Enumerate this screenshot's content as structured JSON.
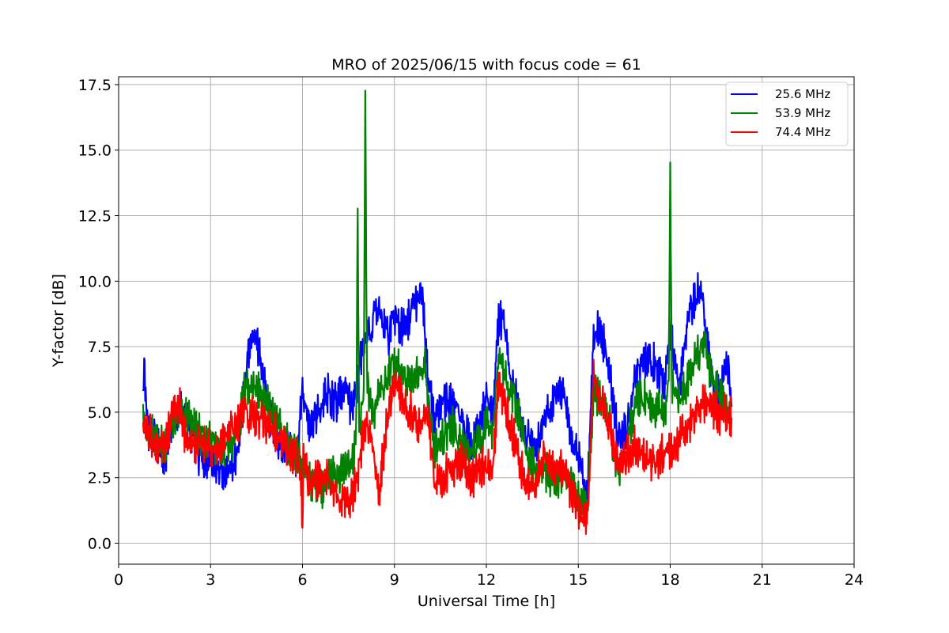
{
  "chart_data": {
    "type": "line",
    "title": "MRO of 2025/06/15 with focus code = 61",
    "xlabel": "Universal Time [h]",
    "ylabel": "Y-factor [dB]",
    "xlim": [
      0,
      24
    ],
    "ylim": [
      -0.8,
      17.8
    ],
    "x_ticks": [
      "0",
      "3",
      "6",
      "9",
      "12",
      "15",
      "18",
      "21",
      "24"
    ],
    "y_ticks": [
      "0.0",
      "2.5",
      "5.0",
      "7.5",
      "10.0",
      "12.5",
      "15.0",
      "17.5"
    ],
    "grid": true,
    "legend_position": "top-right",
    "series": [
      {
        "name": "25.6 MHz",
        "color": "#0000ff",
        "x": [
          0.8,
          0.85,
          0.9,
          1.0,
          1.2,
          1.5,
          1.8,
          2.0,
          2.3,
          2.6,
          3.0,
          3.3,
          3.6,
          3.9,
          4.1,
          4.3,
          4.5,
          4.7,
          5.0,
          5.2,
          5.5,
          5.8,
          6.0,
          6.2,
          6.5,
          6.8,
          7.1,
          7.4,
          7.6,
          7.8,
          8.0,
          8.2,
          8.4,
          8.6,
          8.8,
          9.0,
          9.3,
          9.6,
          9.9,
          10.1,
          10.3,
          10.6,
          10.9,
          11.2,
          11.5,
          11.8,
          12.0,
          12.2,
          12.4,
          12.6,
          12.8,
          13.0,
          13.3,
          13.6,
          13.9,
          14.2,
          14.5,
          14.8,
          15.1,
          15.3,
          15.5,
          15.7,
          16.0,
          16.3,
          16.6,
          16.9,
          17.2,
          17.5,
          17.8,
          18.0,
          18.3,
          18.6,
          18.9,
          19.1,
          19.3,
          19.6,
          19.9,
          20.0
        ],
        "y": [
          5.6,
          6.8,
          5.0,
          4.2,
          3.9,
          3.3,
          4.6,
          5.2,
          4.5,
          3.4,
          3.1,
          2.9,
          2.6,
          3.4,
          5.8,
          7.7,
          7.8,
          6.3,
          4.5,
          3.6,
          4.0,
          3.3,
          6.0,
          4.3,
          5.0,
          5.8,
          5.3,
          6.1,
          5.0,
          6.2,
          7.6,
          8.0,
          9.0,
          8.5,
          7.8,
          8.7,
          8.2,
          8.9,
          9.8,
          6.0,
          4.9,
          5.4,
          5.3,
          4.8,
          3.6,
          4.4,
          5.6,
          4.8,
          8.6,
          8.2,
          6.4,
          5.3,
          4.0,
          3.6,
          4.6,
          5.4,
          5.8,
          3.8,
          2.9,
          1.8,
          7.7,
          8.3,
          6.7,
          4.0,
          4.3,
          6.6,
          7.1,
          6.9,
          6.0,
          8.2,
          5.9,
          8.8,
          9.6,
          9.0,
          6.5,
          5.6,
          6.8,
          5.2
        ]
      },
      {
        "name": "53.9 MHz",
        "color": "#008000",
        "x": [
          0.8,
          1.0,
          1.2,
          1.5,
          1.8,
          2.0,
          2.3,
          2.6,
          3.0,
          3.3,
          3.6,
          3.9,
          4.1,
          4.3,
          4.5,
          4.7,
          5.0,
          5.3,
          5.6,
          5.9,
          6.1,
          6.4,
          6.7,
          7.0,
          7.3,
          7.6,
          7.75,
          7.8,
          7.85,
          8.0,
          8.05,
          8.1,
          8.15,
          8.3,
          8.6,
          8.9,
          9.1,
          9.4,
          9.7,
          10.0,
          10.3,
          10.6,
          10.9,
          11.2,
          11.5,
          11.8,
          12.0,
          12.2,
          12.4,
          12.6,
          12.8,
          13.0,
          13.3,
          13.6,
          13.9,
          14.2,
          14.5,
          14.8,
          15.1,
          15.3,
          15.5,
          15.7,
          16.0,
          16.3,
          16.6,
          16.9,
          17.2,
          17.5,
          17.8,
          17.95,
          18.0,
          18.05,
          18.3,
          18.6,
          18.9,
          19.1,
          19.3,
          19.6,
          19.9,
          20.0
        ],
        "y": [
          4.6,
          4.3,
          3.9,
          3.6,
          4.8,
          5.0,
          4.7,
          4.2,
          3.9,
          3.6,
          3.7,
          4.3,
          5.8,
          5.9,
          5.9,
          5.6,
          5.0,
          4.3,
          3.6,
          3.3,
          2.6,
          2.3,
          2.0,
          2.8,
          2.6,
          3.0,
          4.0,
          12.8,
          4.4,
          5.5,
          16.8,
          6.5,
          5.8,
          5.0,
          5.9,
          6.8,
          6.7,
          6.0,
          6.5,
          6.8,
          3.6,
          4.0,
          4.5,
          3.6,
          3.3,
          3.9,
          4.5,
          4.2,
          7.3,
          6.5,
          5.8,
          5.2,
          3.3,
          2.9,
          2.7,
          2.5,
          2.5,
          2.1,
          1.6,
          1.5,
          5.8,
          5.5,
          4.7,
          2.6,
          3.8,
          5.6,
          5.5,
          5.2,
          5.0,
          6.0,
          14.6,
          6.0,
          5.4,
          6.3,
          7.2,
          7.7,
          6.6,
          5.7,
          5.0,
          4.3
        ]
      },
      {
        "name": "74.4 MHz",
        "color": "#ff0000",
        "x": [
          0.8,
          1.0,
          1.2,
          1.5,
          1.8,
          2.0,
          2.2,
          2.4,
          2.7,
          3.0,
          3.3,
          3.6,
          3.9,
          4.1,
          4.4,
          4.7,
          5.0,
          5.3,
          5.6,
          5.9,
          5.97,
          6.0,
          6.03,
          6.3,
          6.6,
          6.9,
          7.2,
          7.5,
          7.8,
          8.0,
          8.2,
          8.5,
          8.8,
          9.0,
          9.3,
          9.6,
          9.9,
          10.1,
          10.3,
          10.6,
          10.9,
          11.2,
          11.5,
          11.8,
          12.0,
          12.2,
          12.4,
          12.6,
          12.8,
          13.0,
          13.3,
          13.6,
          13.9,
          14.2,
          14.5,
          14.8,
          15.1,
          15.3,
          15.5,
          15.7,
          16.0,
          16.3,
          16.6,
          16.9,
          17.2,
          17.5,
          17.8,
          18.0,
          18.3,
          18.6,
          18.9,
          19.1,
          19.3,
          19.6,
          19.9,
          20.0
        ],
        "y": [
          4.4,
          4.2,
          3.8,
          3.7,
          5.0,
          5.3,
          3.9,
          3.7,
          3.9,
          3.7,
          3.6,
          4.2,
          4.6,
          5.1,
          4.8,
          4.7,
          4.4,
          4.0,
          3.5,
          3.2,
          2.0,
          0.2,
          3.0,
          2.2,
          2.6,
          2.3,
          1.6,
          1.6,
          2.4,
          4.5,
          4.3,
          2.0,
          5.0,
          6.1,
          5.5,
          4.9,
          4.4,
          5.0,
          2.2,
          2.6,
          2.8,
          3.2,
          2.4,
          2.9,
          3.0,
          2.5,
          6.3,
          5.2,
          4.5,
          3.6,
          2.0,
          2.4,
          3.3,
          3.0,
          2.7,
          1.8,
          1.0,
          0.8,
          6.3,
          5.5,
          4.6,
          3.0,
          3.4,
          3.8,
          3.3,
          3.0,
          3.5,
          3.4,
          4.0,
          4.5,
          5.0,
          5.3,
          5.2,
          4.9,
          5.0,
          4.8
        ]
      }
    ]
  }
}
